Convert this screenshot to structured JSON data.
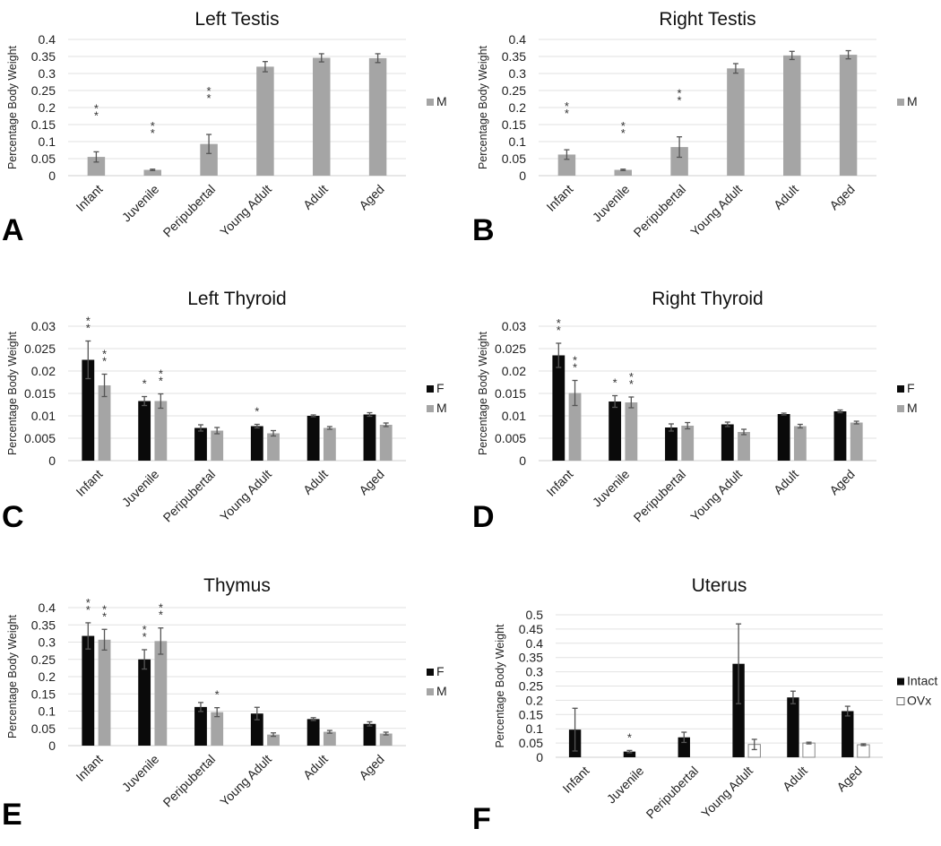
{
  "chart_data": [
    {
      "panel": "A",
      "type": "bar",
      "title": "Left Testis",
      "ylabel": "Percentage Body Weight",
      "categories": [
        "Infant",
        "Juvenile",
        "Peripubertal",
        "Young Adult",
        "Adult",
        "Aged"
      ],
      "ylim": [
        0,
        0.4
      ],
      "yticks": [
        "0",
        "0.05",
        "0.1",
        "0.15",
        "0.2",
        "0.25",
        "0.3",
        "0.35",
        "0.4"
      ],
      "grid": true,
      "legend": "right",
      "series": [
        {
          "name": "M",
          "color": "#a5a5a5",
          "values": [
            0.055,
            0.017,
            0.093,
            0.32,
            0.346,
            0.345
          ],
          "errors": [
            0.015,
            0.002,
            0.028,
            0.015,
            0.012,
            0.013
          ],
          "stars": [
            "**",
            "**",
            "**",
            "",
            "",
            ""
          ]
        }
      ]
    },
    {
      "panel": "B",
      "type": "bar",
      "title": "Right Testis",
      "ylabel": "Percentage Body Weight",
      "categories": [
        "Infant",
        "Juvenile",
        "Peripubertal",
        "Young Adult",
        "Adult",
        "Aged"
      ],
      "ylim": [
        0,
        0.4
      ],
      "yticks": [
        "0",
        "0.05",
        "0.1",
        "0.15",
        "0.2",
        "0.25",
        "0.3",
        "0.35",
        "0.4"
      ],
      "grid": true,
      "legend": "right",
      "series": [
        {
          "name": "M",
          "color": "#a5a5a5",
          "values": [
            0.062,
            0.017,
            0.084,
            0.315,
            0.353,
            0.355
          ],
          "errors": [
            0.014,
            0.002,
            0.03,
            0.014,
            0.012,
            0.012
          ],
          "stars": [
            "**",
            "**",
            "**",
            "",
            "",
            ""
          ]
        }
      ]
    },
    {
      "panel": "C",
      "type": "bar",
      "title": "Left Thyroid",
      "ylabel": "Percentage Body Weight",
      "categories": [
        "Infant",
        "Juvenile",
        "Peripubertal",
        "Young Adult",
        "Adult",
        "Aged"
      ],
      "ylim": [
        0,
        0.03
      ],
      "yticks": [
        "0",
        "0.005",
        "0.01",
        "0.015",
        "0.02",
        "0.025",
        "0.03"
      ],
      "grid": true,
      "legend": "right",
      "series": [
        {
          "name": "F",
          "color": "#0a0a0a",
          "values": [
            0.0225,
            0.0133,
            0.0073,
            0.0077,
            0.01,
            0.0103
          ],
          "errors": [
            0.0042,
            0.001,
            0.0007,
            0.0004,
            0.0002,
            0.0004
          ],
          "stars": [
            "**",
            "*",
            "",
            "*",
            "",
            ""
          ]
        },
        {
          "name": "M",
          "color": "#a5a5a5",
          "values": [
            0.0168,
            0.0133,
            0.0067,
            0.0061,
            0.0073,
            0.008
          ],
          "errors": [
            0.0025,
            0.0016,
            0.0007,
            0.0006,
            0.0003,
            0.0004
          ],
          "stars": [
            "**",
            "**",
            "",
            "",
            "",
            ""
          ]
        }
      ]
    },
    {
      "panel": "D",
      "type": "bar",
      "title": "Right Thyroid",
      "ylabel": "Percentage Body Weight",
      "categories": [
        "Infant",
        "Juvenile",
        "Peripubertal",
        "Young Adult",
        "Adult",
        "Aged"
      ],
      "ylim": [
        0,
        0.03
      ],
      "yticks": [
        "0",
        "0.005",
        "0.01",
        "0.015",
        "0.02",
        "0.025",
        "0.03"
      ],
      "grid": true,
      "legend": "right",
      "series": [
        {
          "name": "F",
          "color": "#0a0a0a",
          "values": [
            0.0235,
            0.0132,
            0.0074,
            0.0081,
            0.0104,
            0.011
          ],
          "errors": [
            0.0027,
            0.0013,
            0.0008,
            0.0005,
            0.0002,
            0.0003
          ],
          "stars": [
            "**",
            "*",
            "",
            "",
            "",
            ""
          ]
        },
        {
          "name": "M",
          "color": "#a5a5a5",
          "values": [
            0.0151,
            0.013,
            0.0078,
            0.0064,
            0.0077,
            0.0085
          ],
          "errors": [
            0.0028,
            0.0012,
            0.0007,
            0.0006,
            0.0004,
            0.0003
          ],
          "stars": [
            "**",
            "**",
            "",
            "",
            "",
            ""
          ]
        }
      ]
    },
    {
      "panel": "E",
      "type": "bar",
      "title": "Thymus",
      "ylabel": "Percentage Body Weight",
      "categories": [
        "Infant",
        "Juvenile",
        "Peripubertal",
        "Young Adult",
        "Adult",
        "Aged"
      ],
      "ylim": [
        0,
        0.4
      ],
      "yticks": [
        "0",
        "0.05",
        "0.1",
        "0.15",
        "0.2",
        "0.25",
        "0.3",
        "0.35",
        "0.4"
      ],
      "grid": true,
      "legend": "right",
      "series": [
        {
          "name": "F",
          "color": "#0a0a0a",
          "values": [
            0.318,
            0.25,
            0.112,
            0.093,
            0.077,
            0.063
          ],
          "errors": [
            0.038,
            0.028,
            0.013,
            0.018,
            0.004,
            0.006
          ],
          "stars": [
            "**",
            "**",
            "",
            "",
            "",
            ""
          ]
        },
        {
          "name": "M",
          "color": "#a5a5a5",
          "values": [
            0.307,
            0.303,
            0.097,
            0.032,
            0.04,
            0.035
          ],
          "errors": [
            0.03,
            0.038,
            0.013,
            0.005,
            0.004,
            0.004
          ],
          "stars": [
            "**",
            "**",
            "*",
            "",
            "",
            ""
          ]
        }
      ]
    },
    {
      "panel": "F",
      "type": "bar",
      "title": "Uterus",
      "ylabel": "Percentage Body Weight",
      "categories": [
        "Infant",
        "Juvenile",
        "Peripubertal",
        "Young Adult",
        "Adult",
        "Aged"
      ],
      "ylim": [
        0,
        0.5
      ],
      "yticks": [
        "0",
        "0.05",
        "0.1",
        "0.15",
        "0.2",
        "0.25",
        "0.3",
        "0.35",
        "0.4",
        "0.45",
        "0.5"
      ],
      "grid": true,
      "legend": "right",
      "series": [
        {
          "name": "Intact",
          "color": "#0a0a0a",
          "values": [
            0.097,
            0.02,
            0.07,
            0.328,
            0.21,
            0.162
          ],
          "errors": [
            0.075,
            0.004,
            0.018,
            0.14,
            0.022,
            0.017
          ],
          "stars": [
            "",
            "*",
            "",
            "",
            "",
            ""
          ]
        },
        {
          "name": "OVx",
          "color": "#ffffff",
          "values": [
            null,
            null,
            null,
            0.045,
            0.05,
            0.044
          ],
          "errors": [
            null,
            null,
            null,
            0.018,
            0.003,
            0.003
          ],
          "stars": [
            "",
            "",
            "",
            "",
            "",
            ""
          ]
        }
      ]
    }
  ]
}
